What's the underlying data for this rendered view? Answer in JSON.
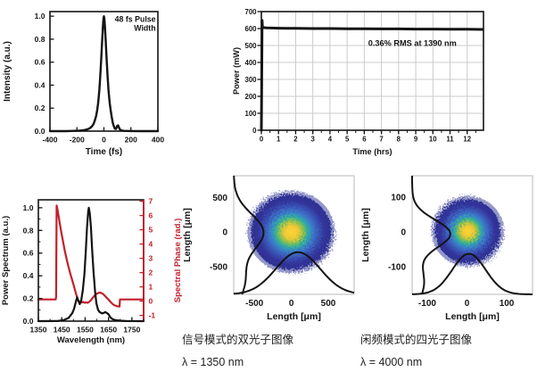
{
  "captions": {
    "signal": {
      "title": "信号模式的双光子图像",
      "wavelength": "λ = 1350 nm"
    },
    "idler": {
      "title": "闲频模式的四光子图像",
      "wavelength": "λ = 4000 nm"
    }
  },
  "chart_data": [
    {
      "id": "pulse",
      "type": "line",
      "title": "",
      "xlabel": "Time (fs)",
      "ylabel": "Intensity (a.u.)",
      "x_range": [
        -400,
        400
      ],
      "y_range": [
        0,
        1.04
      ],
      "x_ticks": [
        -400,
        -200,
        0,
        200,
        400
      ],
      "x_tick_labels": [
        "-400",
        "-200",
        "0",
        "200",
        "400"
      ],
      "y_ticks": [
        0,
        0.2,
        0.4,
        0.6,
        0.8,
        1.0
      ],
      "y_tick_labels": [
        "0.0",
        "0.2",
        "0.4",
        "0.6",
        "0.8",
        "1.0"
      ],
      "ticks": "in",
      "grid": false,
      "annotation": {
        "lines": [
          "48 fs Pulse",
          "Width"
        ],
        "fx": 0.98,
        "fy": 0.02,
        "anchor": "end",
        "color": "#141414"
      },
      "series": [
        {
          "name": "intensity",
          "color": "#141414",
          "width": 2.4,
          "points": [
            [
              -400,
              0
            ],
            [
              -280,
              0
            ],
            [
              -220,
              0.002
            ],
            [
              -180,
              0.004
            ],
            [
              -150,
              0.008
            ],
            [
              -125,
              0.015
            ],
            [
              -105,
              0.025
            ],
            [
              -90,
              0.04
            ],
            [
              -78,
              0.06
            ],
            [
              -68,
              0.09
            ],
            [
              -58,
              0.13
            ],
            [
              -50,
              0.18
            ],
            [
              -42,
              0.25
            ],
            [
              -34,
              0.36
            ],
            [
              -27,
              0.48
            ],
            [
              -20,
              0.63
            ],
            [
              -14,
              0.77
            ],
            [
              -8,
              0.9
            ],
            [
              -3,
              0.98
            ],
            [
              0,
              1.0
            ],
            [
              3,
              0.98
            ],
            [
              8,
              0.9
            ],
            [
              14,
              0.77
            ],
            [
              20,
              0.63
            ],
            [
              27,
              0.48
            ],
            [
              34,
              0.36
            ],
            [
              42,
              0.25
            ],
            [
              50,
              0.18
            ],
            [
              58,
              0.12
            ],
            [
              66,
              0.07
            ],
            [
              74,
              0.04
            ],
            [
              82,
              0.02
            ],
            [
              90,
              0.02
            ],
            [
              98,
              0.045
            ],
            [
              105,
              0.05
            ],
            [
              112,
              0.03
            ],
            [
              120,
              0.012
            ],
            [
              132,
              0.005
            ],
            [
              150,
              0.002
            ],
            [
              200,
              0.001
            ],
            [
              280,
              0
            ],
            [
              400,
              0
            ]
          ]
        }
      ]
    },
    {
      "id": "power",
      "type": "line",
      "title": "",
      "xlabel": "Time (hrs)",
      "ylabel": "Power (mW)",
      "x_range": [
        0,
        12.95
      ],
      "y_range": [
        0,
        700
      ],
      "x_ticks": [
        0,
        1,
        2,
        3,
        4,
        5,
        6,
        7,
        8,
        9,
        10,
        11,
        12
      ],
      "x_tick_labels": [
        "0",
        "1",
        "2",
        "3",
        "4",
        "5",
        "6",
        "7",
        "8",
        "9",
        "10",
        "11",
        "12"
      ],
      "x_minor_step": 0.5,
      "y_ticks": [
        0,
        100,
        200,
        300,
        400,
        500,
        600,
        700
      ],
      "y_tick_labels": [
        "0",
        "100",
        "200",
        "300",
        "400",
        "500",
        "600",
        "700"
      ],
      "ticks": "out",
      "grid": true,
      "grid_color": "#cbcbcb",
      "annotation": {
        "lines": [
          "0.36% RMS at 1390 nm"
        ],
        "fx": 0.68,
        "fy": 0.22,
        "anchor": "middle",
        "color": "#141414"
      },
      "series": [
        {
          "name": "power_stability",
          "color": "#141414",
          "width": 3,
          "points": [
            [
              0,
              0
            ],
            [
              0.02,
              300
            ],
            [
              0.04,
              648
            ],
            [
              0.06,
              612
            ],
            [
              0.1,
              606
            ],
            [
              0.3,
              604
            ],
            [
              0.6,
              603
            ],
            [
              1,
              602
            ],
            [
              1.5,
              601
            ],
            [
              2,
              601
            ],
            [
              3,
              600
            ],
            [
              4,
              600
            ],
            [
              5,
              599
            ],
            [
              6,
              599
            ],
            [
              7,
              598
            ],
            [
              8,
              598
            ],
            [
              9,
              597
            ],
            [
              10,
              597
            ],
            [
              11,
              596
            ],
            [
              12,
              596
            ],
            [
              12.9,
              595
            ]
          ]
        }
      ]
    },
    {
      "id": "spectrum",
      "type": "line",
      "title": "",
      "xlabel": "Wavelength (nm)",
      "ylabel": "Power Spectrum (a.u.)",
      "y2label": "Spectral Phase (rad.)",
      "x_range": [
        1350,
        1800
      ],
      "y_range": [
        0,
        1.07
      ],
      "y2_range": [
        -1.4,
        7.1
      ],
      "x_ticks": [
        1350,
        1450,
        1550,
        1650,
        1750
      ],
      "x_tick_labels": [
        "1350",
        "1450",
        "1550",
        "1650",
        "1750"
      ],
      "x_minor_step": 50,
      "y_ticks": [
        0,
        0.2,
        0.4,
        0.6,
        0.8,
        1.0
      ],
      "y_tick_labels": [
        "0.0",
        "0.2",
        "0.4",
        "0.6",
        "0.8",
        "1.0"
      ],
      "y_minor_step": 0.1,
      "y2_ticks": [
        -1,
        0,
        1,
        2,
        3,
        4,
        5,
        6,
        7
      ],
      "y2_tick_labels": [
        "-1",
        "0",
        "1",
        "2",
        "3",
        "4",
        "5",
        "6",
        "7"
      ],
      "y2_color": "#c2202a",
      "ticks": "in",
      "grid": false,
      "series": [
        {
          "name": "spectral_phase",
          "axis": "y2",
          "color": "#c2202a",
          "width": 2.2,
          "points": [
            [
              1350,
              0.12
            ],
            [
              1424,
              0.12
            ],
            [
              1426,
              0.3
            ],
            [
              1428,
              6.7
            ],
            [
              1432,
              6.4
            ],
            [
              1438,
              5.8
            ],
            [
              1446,
              5.0
            ],
            [
              1454,
              4.3
            ],
            [
              1462,
              3.6
            ],
            [
              1470,
              3.0
            ],
            [
              1478,
              2.45
            ],
            [
              1486,
              1.95
            ],
            [
              1494,
              1.5
            ],
            [
              1502,
              1.05
            ],
            [
              1508,
              0.7
            ],
            [
              1514,
              0.35
            ],
            [
              1519,
              0.1
            ],
            [
              1524,
              -0.05
            ],
            [
              1530,
              -0.02
            ],
            [
              1536,
              -0.1
            ],
            [
              1542,
              -0.05
            ],
            [
              1548,
              -0.12
            ],
            [
              1554,
              -0.08
            ],
            [
              1560,
              -0.12
            ],
            [
              1567,
              -0.05
            ],
            [
              1574,
              0.05
            ],
            [
              1582,
              0.22
            ],
            [
              1590,
              0.38
            ],
            [
              1598,
              0.5
            ],
            [
              1606,
              0.57
            ],
            [
              1614,
              0.6
            ],
            [
              1622,
              0.55
            ],
            [
              1630,
              0.45
            ],
            [
              1640,
              0.28
            ],
            [
              1650,
              0.1
            ],
            [
              1658,
              -0.05
            ],
            [
              1666,
              -0.18
            ],
            [
              1674,
              -0.28
            ],
            [
              1682,
              -0.33
            ],
            [
              1690,
              -0.36
            ],
            [
              1697,
              -0.38
            ],
            [
              1699,
              0.12
            ],
            [
              1710,
              0.12
            ],
            [
              1800,
              0.12
            ]
          ]
        },
        {
          "name": "power_spectrum",
          "axis": "y",
          "color": "#141414",
          "width": 2.2,
          "points": [
            [
              1350,
              0
            ],
            [
              1430,
              0.001
            ],
            [
              1460,
              0.01
            ],
            [
              1480,
              0.03
            ],
            [
              1495,
              0.07
            ],
            [
              1503,
              0.11
            ],
            [
              1510,
              0.17
            ],
            [
              1516,
              0.21
            ],
            [
              1521,
              0.18
            ],
            [
              1527,
              0.15
            ],
            [
              1533,
              0.18
            ],
            [
              1540,
              0.27
            ],
            [
              1547,
              0.42
            ],
            [
              1553,
              0.62
            ],
            [
              1558,
              0.82
            ],
            [
              1563,
              0.97
            ],
            [
              1566,
              1.0
            ],
            [
              1570,
              0.95
            ],
            [
              1575,
              0.82
            ],
            [
              1580,
              0.63
            ],
            [
              1586,
              0.43
            ],
            [
              1592,
              0.27
            ],
            [
              1598,
              0.16
            ],
            [
              1605,
              0.1
            ],
            [
              1612,
              0.08
            ],
            [
              1620,
              0.07
            ],
            [
              1628,
              0.07
            ],
            [
              1636,
              0.08
            ],
            [
              1644,
              0.07
            ],
            [
              1650,
              0.06
            ],
            [
              1656,
              0.04
            ],
            [
              1662,
              0.025
            ],
            [
              1670,
              0.015
            ],
            [
              1682,
              0.008
            ],
            [
              1700,
              0.004
            ],
            [
              1725,
              0.001
            ],
            [
              1800,
              0
            ]
          ]
        }
      ]
    },
    {
      "id": "beam_signal",
      "type": "beam",
      "title": "",
      "xlabel": "Length [μm]",
      "ylabel": "Length [μm]",
      "x_range": [
        -780,
        850
      ],
      "y_range": [
        -900,
        815
      ],
      "x_ticks": [
        -500,
        0,
        500
      ],
      "x_tick_labels": [
        "-500",
        "0",
        "500"
      ],
      "y_ticks": [
        500,
        0,
        -500
      ],
      "y_tick_labels": [
        "500",
        "0",
        "-500"
      ],
      "spot": {
        "cx": 0,
        "cy": 0,
        "rx": 545,
        "ry": 545
      },
      "v_profile": {
        "center": 0,
        "sigma": 260,
        "amplitude": 400,
        "tail": {
          "center": -700,
          "sigma": 260,
          "amplitude": 150
        }
      },
      "h_profile": {
        "center": 90,
        "sigma": 300,
        "amplitude": 610
      },
      "colormap": [
        [
          0,
          "#fcd535"
        ],
        [
          0.17,
          "#f2c936"
        ],
        [
          0.3,
          "#8cc04d"
        ],
        [
          0.4,
          "#2fae9e"
        ],
        [
          0.52,
          "#3b7ecb"
        ],
        [
          0.68,
          "#3a53b5"
        ],
        [
          0.84,
          "#313399"
        ],
        [
          1,
          "#2e3192"
        ]
      ]
    },
    {
      "id": "beam_idler",
      "type": "beam",
      "title": "",
      "xlabel": "Length [μm]",
      "ylabel": "Length [μm]",
      "x_range": [
        -138,
        165
      ],
      "y_range": [
        -180,
        162
      ],
      "x_ticks": [
        -100,
        0,
        100
      ],
      "x_tick_labels": [
        "-100",
        "0",
        "100"
      ],
      "y_ticks": [
        100,
        0,
        -100
      ],
      "y_tick_labels": [
        "100",
        "0",
        "-100"
      ],
      "spot": {
        "cx": 2,
        "cy": 2,
        "rx": 82,
        "ry": 92
      },
      "v_profile": {
        "center": -5,
        "sigma": 40,
        "amplitude": 95,
        "tail": {
          "center": -145,
          "sigma": 55,
          "amplitude": 30
        }
      },
      "h_profile": {
        "center": 5,
        "sigma": 42,
        "amplitude": 117
      },
      "colormap": [
        [
          0,
          "#fcd535"
        ],
        [
          0.17,
          "#f2c936"
        ],
        [
          0.3,
          "#8cc04d"
        ],
        [
          0.4,
          "#2fae9e"
        ],
        [
          0.52,
          "#3b7ecb"
        ],
        [
          0.68,
          "#3a53b5"
        ],
        [
          0.84,
          "#313399"
        ],
        [
          1,
          "#2e3192"
        ]
      ]
    }
  ]
}
